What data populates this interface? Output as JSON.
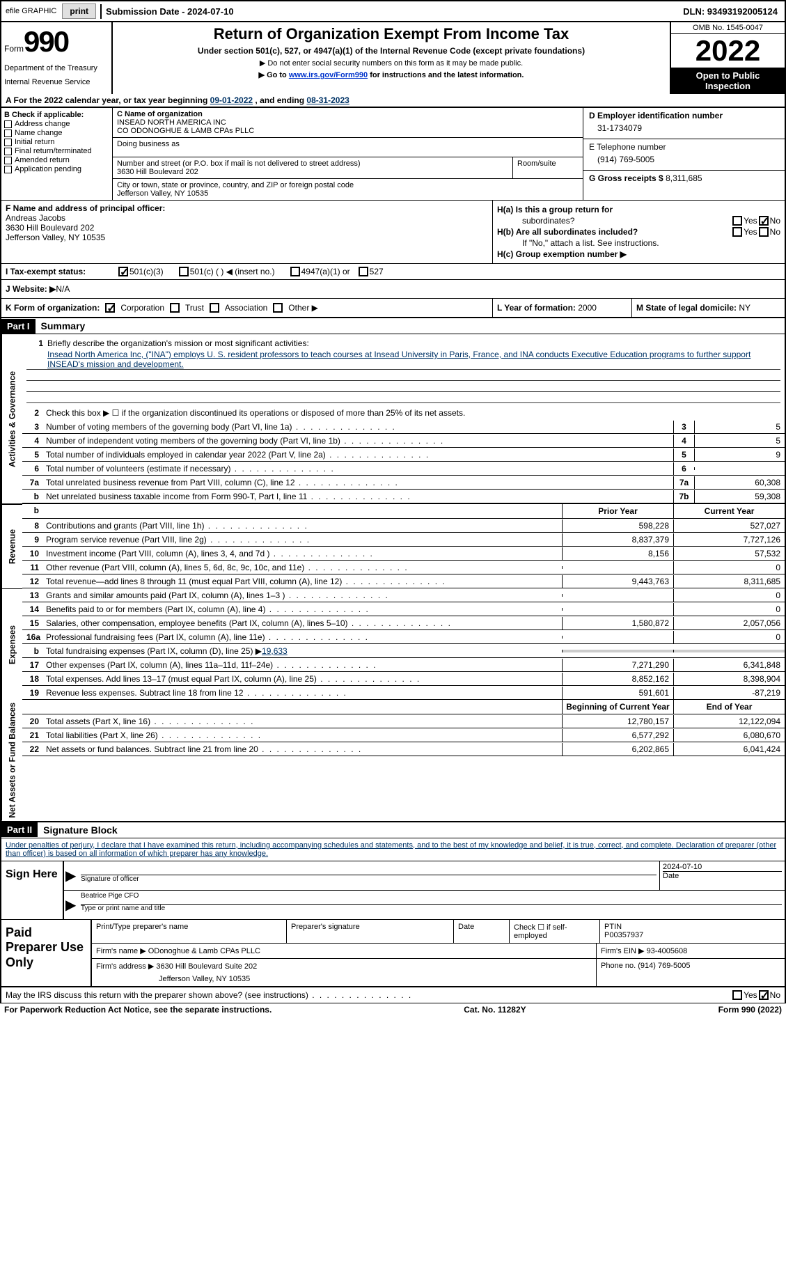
{
  "topbar": {
    "efile": "efile GRAPHIC",
    "print_btn": "print",
    "submission": "Submission Date - 2024-07-10",
    "dln": "DLN: 93493192005124"
  },
  "header": {
    "form_word": "Form",
    "form_num": "990",
    "dept": "Department of the Treasury",
    "irs": "Internal Revenue Service",
    "title": "Return of Organization Exempt From Income Tax",
    "subtitle": "Under section 501(c), 527, or 4947(a)(1) of the Internal Revenue Code (except private foundations)",
    "note1": "▶ Do not enter social security numbers on this form as it may be made public.",
    "note2_pre": "▶ Go to ",
    "note2_link": "www.irs.gov/Form990",
    "note2_post": " for instructions and the latest information.",
    "omb": "OMB No. 1545-0047",
    "year": "2022",
    "open": "Open to Public Inspection"
  },
  "row_a": {
    "label": "A For the 2022 calendar year, or tax year beginning ",
    "begin": "09-01-2022",
    "mid": "   , and ending ",
    "end": "08-31-2023"
  },
  "section_b": {
    "label": "B Check if applicable:",
    "items": [
      "Address change",
      "Name change",
      "Initial return",
      "Final return/terminated",
      "Amended return",
      "Application pending"
    ]
  },
  "section_c": {
    "name_label": "C Name of organization",
    "name1": "INSEAD NORTH AMERICA INC",
    "name2": "CO ODONOGHUE & LAMB CPAs PLLC",
    "dba_label": "Doing business as",
    "addr_label": "Number and street (or P.O. box if mail is not delivered to street address)",
    "room_label": "Room/suite",
    "addr": "3630 Hill Boulevard 202",
    "city_label": "City or town, state or province, country, and ZIP or foreign postal code",
    "city": "Jefferson Valley, NY  10535"
  },
  "section_d": {
    "ein_label": "D Employer identification number",
    "ein": "31-1734079",
    "phone_label": "E Telephone number",
    "phone": "(914) 769-5005",
    "gross_label": "G Gross receipts $ ",
    "gross": "8,311,685"
  },
  "section_f": {
    "label": "F Name and address of principal officer:",
    "name": "Andreas Jacobs",
    "addr1": "3630 Hill Boulevard 202",
    "addr2": "Jefferson Valley, NY  10535"
  },
  "section_h": {
    "ha": "H(a)  Is this a group return for",
    "ha2": "subordinates?",
    "hb": "H(b)  Are all subordinates included?",
    "hb_note": "If \"No,\" attach a list. See instructions.",
    "hc": "H(c)  Group exemption number ▶",
    "yes": "Yes",
    "no": "No"
  },
  "row_i": {
    "label": "I  Tax-exempt status:",
    "opt1": "501(c)(3)",
    "opt2": "501(c) (  ) ◀ (insert no.)",
    "opt3": "4947(a)(1) or",
    "opt4": "527"
  },
  "row_j": {
    "label": "J  Website: ▶",
    "val": "  N/A"
  },
  "row_k": {
    "label": "K Form of organization:",
    "opts": [
      "Corporation",
      "Trust",
      "Association",
      "Other ▶"
    ],
    "l_label": "L Year of formation: ",
    "l_val": "2000",
    "m_label": "M State of legal domicile: ",
    "m_val": "NY"
  },
  "part1": {
    "hdr": "Part I",
    "title": "Summary"
  },
  "summary": {
    "sec1_label": "Activities & Governance",
    "line1_label": "Briefly describe the organization's mission or most significant activities:",
    "mission": "Insead North America Inc, (\"INA\") employs U. S. resident professors to teach courses at Insead University in Paris, France, and INA conducts Executive Education programs to further support INSEAD's mission and development.",
    "line2": "Check this box ▶ ☐  if the organization discontinued its operations or disposed of more than 25% of its net assets.",
    "rows_gov": [
      {
        "n": "3",
        "d": "Number of voting members of the governing body (Part VI, line 1a)",
        "b": "3",
        "v": "5"
      },
      {
        "n": "4",
        "d": "Number of independent voting members of the governing body (Part VI, line 1b)",
        "b": "4",
        "v": "5"
      },
      {
        "n": "5",
        "d": "Total number of individuals employed in calendar year 2022 (Part V, line 2a)",
        "b": "5",
        "v": "9"
      },
      {
        "n": "6",
        "d": "Total number of volunteers (estimate if necessary)",
        "b": "6",
        "v": ""
      },
      {
        "n": "7a",
        "d": "Total unrelated business revenue from Part VIII, column (C), line 12",
        "b": "7a",
        "v": "60,308"
      },
      {
        "n": "b",
        "d": "Net unrelated business taxable income from Form 990-T, Part I, line 11",
        "b": "7b",
        "v": "59,308"
      }
    ],
    "prior_label": "Prior Year",
    "current_label": "Current Year",
    "sec2_label": "Revenue",
    "rows_rev": [
      {
        "n": "8",
        "d": "Contributions and grants (Part VIII, line 1h)",
        "p": "598,228",
        "c": "527,027"
      },
      {
        "n": "9",
        "d": "Program service revenue (Part VIII, line 2g)",
        "p": "8,837,379",
        "c": "7,727,126"
      },
      {
        "n": "10",
        "d": "Investment income (Part VIII, column (A), lines 3, 4, and 7d )",
        "p": "8,156",
        "c": "57,532"
      },
      {
        "n": "11",
        "d": "Other revenue (Part VIII, column (A), lines 5, 6d, 8c, 9c, 10c, and 11e)",
        "p": "",
        "c": "0"
      },
      {
        "n": "12",
        "d": "Total revenue—add lines 8 through 11 (must equal Part VIII, column (A), line 12)",
        "p": "9,443,763",
        "c": "8,311,685"
      }
    ],
    "sec3_label": "Expenses",
    "rows_exp": [
      {
        "n": "13",
        "d": "Grants and similar amounts paid (Part IX, column (A), lines 1–3 )",
        "p": "",
        "c": "0"
      },
      {
        "n": "14",
        "d": "Benefits paid to or for members (Part IX, column (A), line 4)",
        "p": "",
        "c": "0"
      },
      {
        "n": "15",
        "d": "Salaries, other compensation, employee benefits (Part IX, column (A), lines 5–10)",
        "p": "1,580,872",
        "c": "2,057,056"
      },
      {
        "n": "16a",
        "d": "Professional fundraising fees (Part IX, column (A), line 11e)",
        "p": "",
        "c": "0"
      }
    ],
    "line16b_n": "b",
    "line16b": "Total fundraising expenses (Part IX, column (D), line 25) ▶",
    "line16b_val": "19,633",
    "rows_exp2": [
      {
        "n": "17",
        "d": "Other expenses (Part IX, column (A), lines 11a–11d, 11f–24e)",
        "p": "7,271,290",
        "c": "6,341,848"
      },
      {
        "n": "18",
        "d": "Total expenses. Add lines 13–17 (must equal Part IX, column (A), line 25)",
        "p": "8,852,162",
        "c": "8,398,904"
      },
      {
        "n": "19",
        "d": "Revenue less expenses. Subtract line 18 from line 12",
        "p": "591,601",
        "c": "-87,219"
      }
    ],
    "sec4_label": "Net Assets or Fund Balances",
    "begin_label": "Beginning of Current Year",
    "end_label": "End of Year",
    "rows_net": [
      {
        "n": "20",
        "d": "Total assets (Part X, line 16)",
        "p": "12,780,157",
        "c": "12,122,094"
      },
      {
        "n": "21",
        "d": "Total liabilities (Part X, line 26)",
        "p": "6,577,292",
        "c": "6,080,670"
      },
      {
        "n": "22",
        "d": "Net assets or fund balances. Subtract line 21 from line 20",
        "p": "6,202,865",
        "c": "6,041,424"
      }
    ]
  },
  "part2": {
    "hdr": "Part II",
    "title": "Signature Block"
  },
  "sig": {
    "decl": "Under penalties of perjury, I declare that I have examined this return, including accompanying schedules and statements, and to the best of my knowledge and belief, it is true, correct, and complete. Declaration of preparer (other than officer) is based on all information of which preparer has any knowledge.",
    "sign_here": "Sign Here",
    "sig_officer": "Signature of officer",
    "date_label": "Date",
    "date": "2024-07-10",
    "name": "Beatrice Pige CFO",
    "name_label": "Type or print name and title",
    "paid": "Paid Preparer Use Only",
    "prep_name_label": "Print/Type preparer's name",
    "prep_sig_label": "Preparer's signature",
    "check_self": "Check ☐ if self-employed",
    "ptin_label": "PTIN",
    "ptin": "P00357937",
    "firm_name_label": "Firm's name    ▶ ",
    "firm_name": "ODonoghue & Lamb CPAs PLLC",
    "firm_ein_label": "Firm's EIN ▶ ",
    "firm_ein": "93-4005608",
    "firm_addr_label": "Firm's address ▶ ",
    "firm_addr": "3630 Hill Boulevard Suite 202",
    "firm_city": "Jefferson Valley, NY  10535",
    "firm_phone_label": "Phone no. ",
    "firm_phone": "(914) 769-5005"
  },
  "footer": {
    "discuss": "May the IRS discuss this return with the preparer shown above? (see instructions)",
    "yes": "Yes",
    "no": "No",
    "paperwork": "For Paperwork Reduction Act Notice, see the separate instructions.",
    "cat": "Cat. No. 11282Y",
    "form": "Form 990 (2022)"
  }
}
